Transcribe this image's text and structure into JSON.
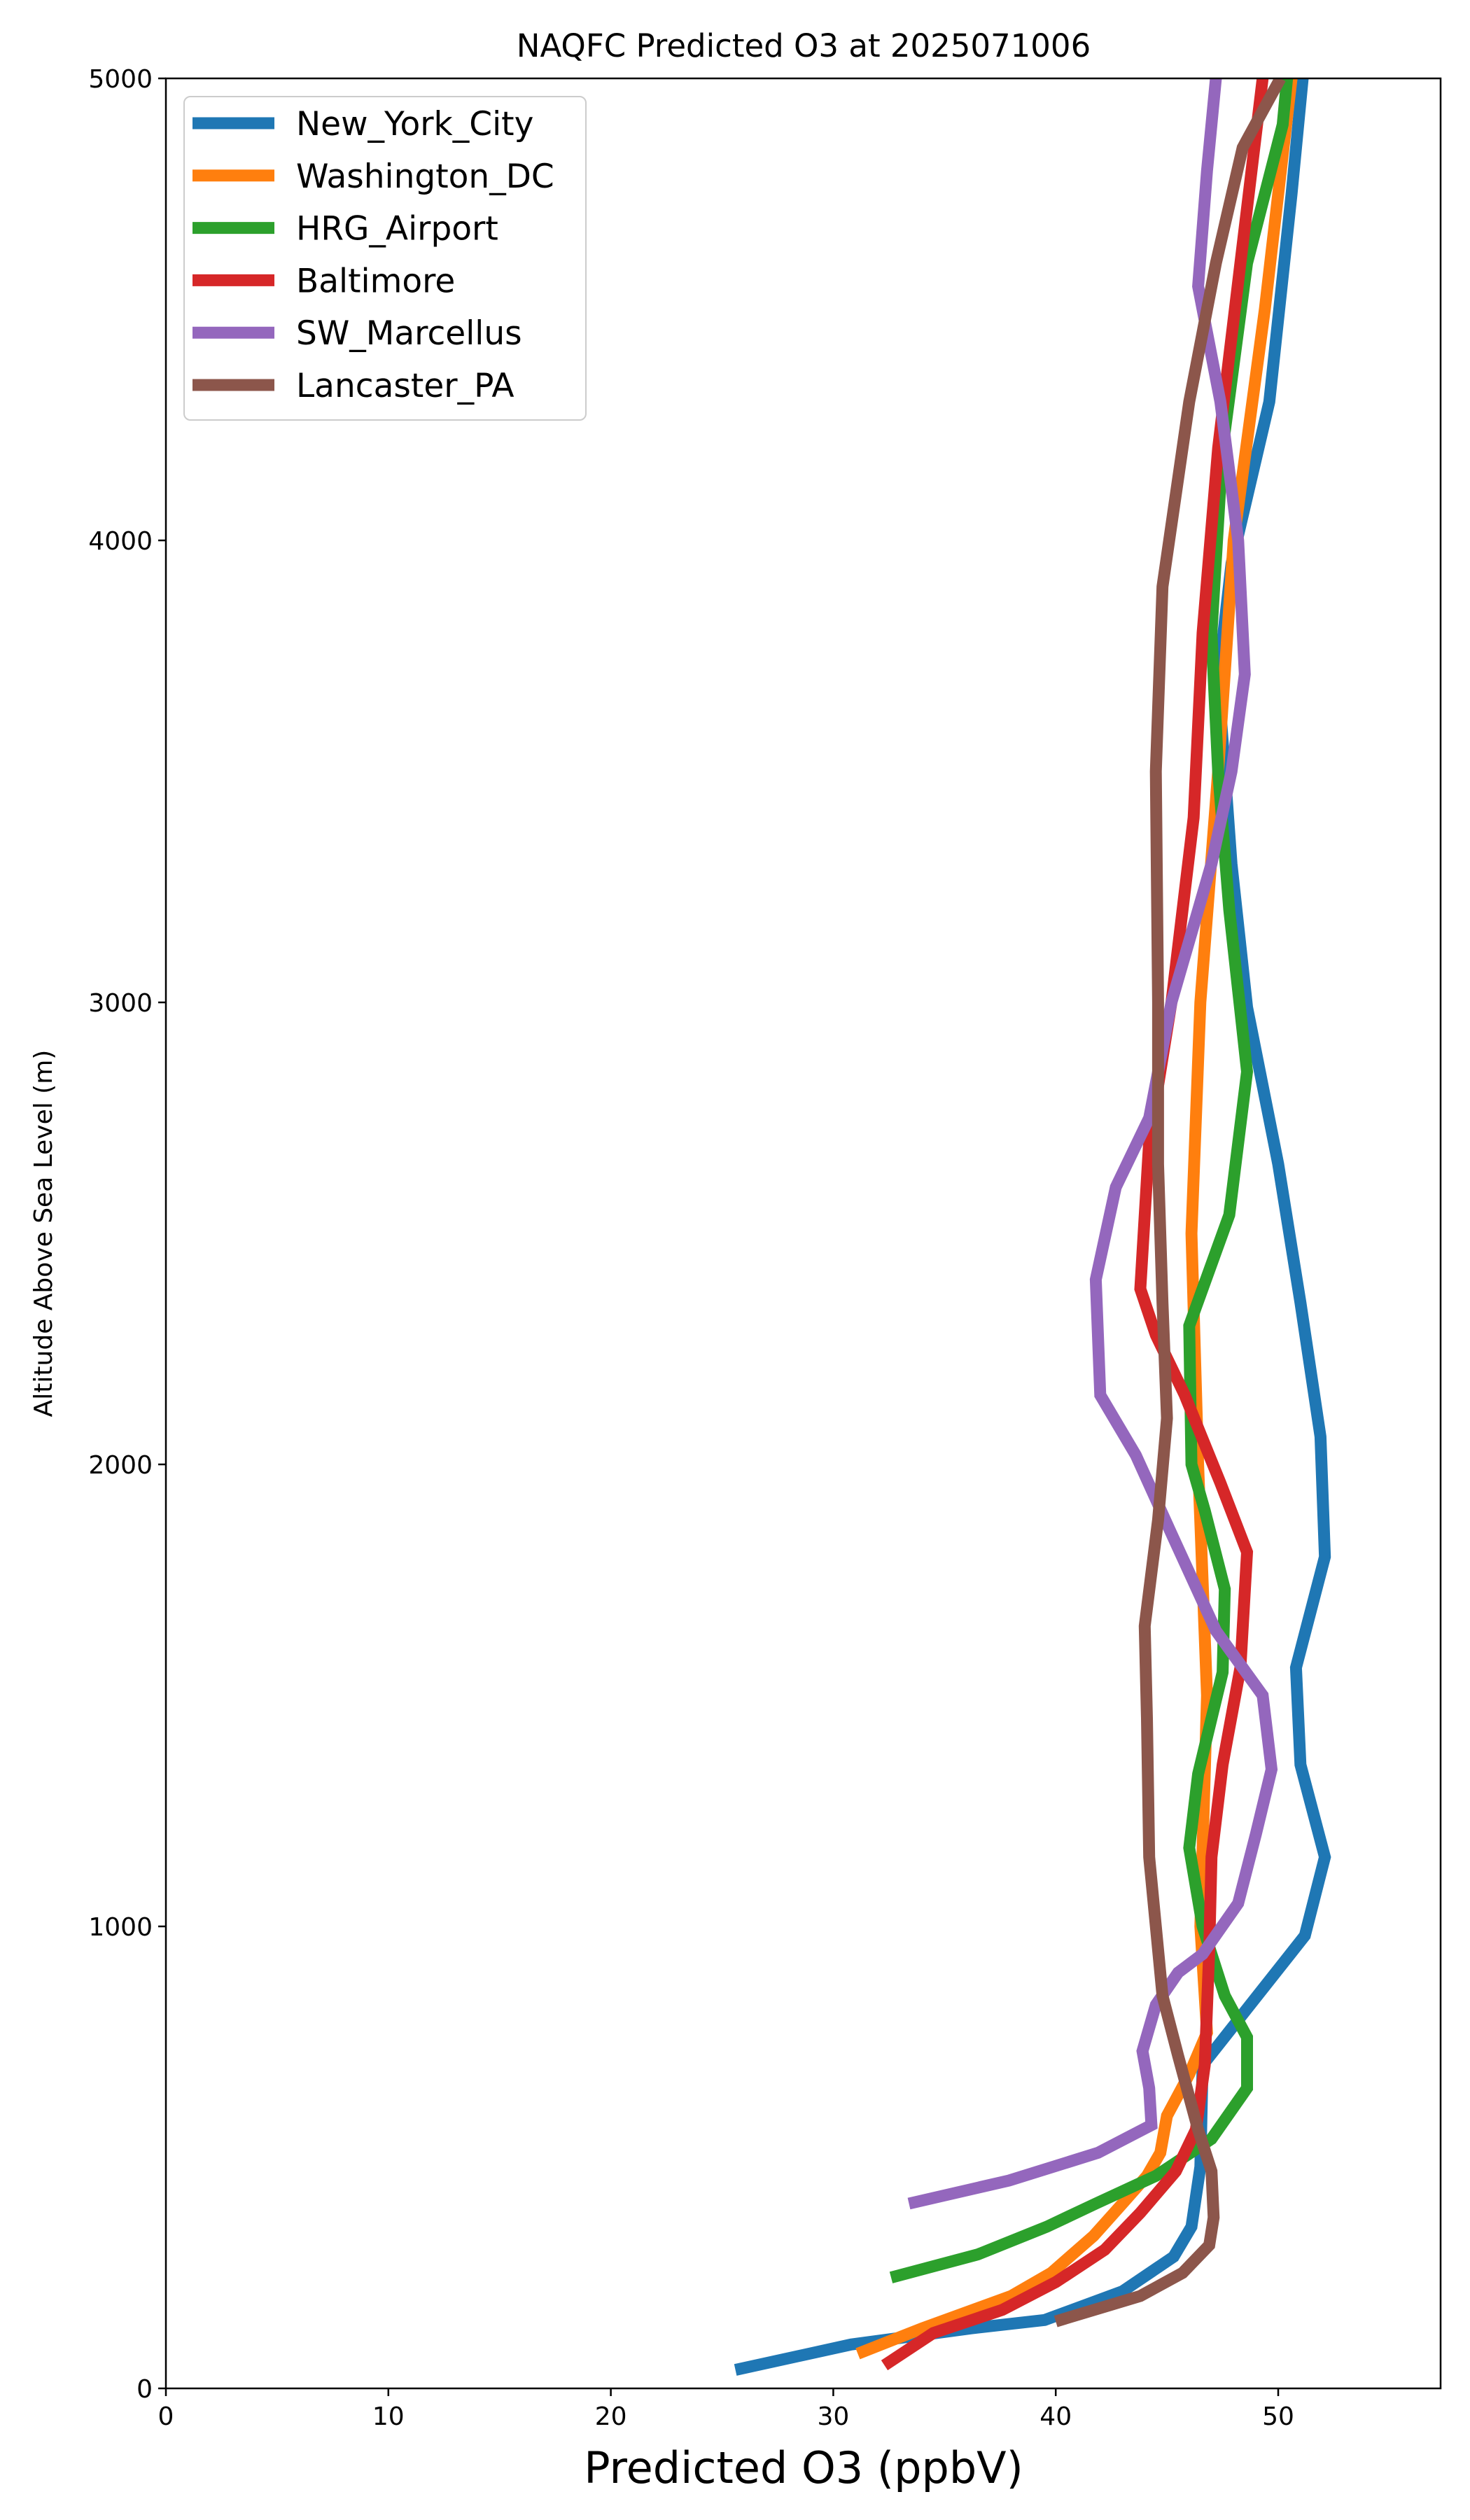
{
  "chart_data": {
    "type": "line",
    "title": "NAQFC Predicted O3 at 2025071006",
    "xlabel": "Predicted O3 (ppbV)",
    "ylabel": "Altitude Above Sea Level (m)",
    "xlim": [
      0,
      57.3
    ],
    "ylim": [
      0,
      5000
    ],
    "xticks": [
      0,
      10,
      20,
      30,
      40,
      50
    ],
    "yticks": [
      0,
      1000,
      2000,
      3000,
      4000,
      5000
    ],
    "grid": false,
    "legend_position": "top-left",
    "series": [
      {
        "name": "New_York_City",
        "color": "#1f77b4",
        "points": [
          [
            25.6,
            40
          ],
          [
            30.8,
            95
          ],
          [
            36.2,
            130
          ],
          [
            39.5,
            148
          ],
          [
            43.0,
            210
          ],
          [
            45.3,
            285
          ],
          [
            46.1,
            350
          ],
          [
            46.5,
            480
          ],
          [
            46.6,
            700
          ],
          [
            51.2,
            980
          ],
          [
            52.1,
            1150
          ],
          [
            51.0,
            1350
          ],
          [
            50.8,
            1560
          ],
          [
            52.1,
            1800
          ],
          [
            51.9,
            2060
          ],
          [
            51.0,
            2350
          ],
          [
            50.0,
            2650
          ],
          [
            48.6,
            2990
          ],
          [
            47.9,
            3300
          ],
          [
            47.3,
            3700
          ],
          [
            47.9,
            3950
          ],
          [
            49.6,
            4300
          ],
          [
            50.6,
            4750
          ],
          [
            51.1,
            5000
          ]
        ]
      },
      {
        "name": "Washington_DC",
        "color": "#ff7f0e",
        "points": [
          [
            31.1,
            75
          ],
          [
            34.0,
            130
          ],
          [
            38.0,
            200
          ],
          [
            39.8,
            250
          ],
          [
            41.7,
            330
          ],
          [
            43.0,
            400
          ],
          [
            44.1,
            460
          ],
          [
            44.7,
            510
          ],
          [
            45.0,
            590
          ],
          [
            46.0,
            680
          ],
          [
            46.8,
            770
          ],
          [
            46.5,
            1000
          ],
          [
            46.8,
            1500
          ],
          [
            46.4,
            2000
          ],
          [
            46.1,
            2500
          ],
          [
            46.5,
            3000
          ],
          [
            47.3,
            3500
          ],
          [
            48.0,
            4000
          ],
          [
            49.4,
            4500
          ],
          [
            50.6,
            5000
          ]
        ]
      },
      {
        "name": "HRG_Airport",
        "color": "#2ca02c",
        "points": [
          [
            32.6,
            240
          ],
          [
            36.5,
            290
          ],
          [
            39.6,
            350
          ],
          [
            41.8,
            400
          ],
          [
            44.5,
            460
          ],
          [
            47.0,
            540
          ],
          [
            48.6,
            650
          ],
          [
            48.6,
            760
          ],
          [
            47.6,
            850
          ],
          [
            46.6,
            1000
          ],
          [
            46.0,
            1170
          ],
          [
            46.4,
            1330
          ],
          [
            47.5,
            1550
          ],
          [
            47.6,
            1730
          ],
          [
            46.7,
            1900
          ],
          [
            46.1,
            2000
          ],
          [
            46.0,
            2300
          ],
          [
            47.8,
            2540
          ],
          [
            48.6,
            2850
          ],
          [
            47.8,
            3200
          ],
          [
            47.3,
            3500
          ],
          [
            47.0,
            3800
          ],
          [
            47.5,
            4200
          ],
          [
            48.6,
            4600
          ],
          [
            50.2,
            4900
          ],
          [
            50.4,
            5000
          ]
        ]
      },
      {
        "name": "Baltimore",
        "color": "#d62728",
        "points": [
          [
            32.3,
            50
          ],
          [
            34.5,
            120
          ],
          [
            37.6,
            170
          ],
          [
            40.0,
            230
          ],
          [
            42.2,
            300
          ],
          [
            43.8,
            380
          ],
          [
            45.4,
            470
          ],
          [
            46.3,
            560
          ],
          [
            46.7,
            700
          ],
          [
            46.9,
            950
          ],
          [
            47.0,
            1150
          ],
          [
            47.5,
            1350
          ],
          [
            48.3,
            1560
          ],
          [
            48.6,
            1810
          ],
          [
            47.4,
            1960
          ],
          [
            45.8,
            2150
          ],
          [
            44.5,
            2280
          ],
          [
            43.8,
            2380
          ],
          [
            44.2,
            2700
          ],
          [
            45.2,
            3000
          ],
          [
            46.2,
            3400
          ],
          [
            46.6,
            3800
          ],
          [
            47.3,
            4200
          ],
          [
            48.3,
            4600
          ],
          [
            49.3,
            5000
          ]
        ]
      },
      {
        "name": "SW_Marcellus",
        "color": "#9467bd",
        "points": [
          [
            33.4,
            400
          ],
          [
            37.9,
            450
          ],
          [
            41.9,
            510
          ],
          [
            44.3,
            570
          ],
          [
            44.2,
            650
          ],
          [
            43.9,
            730
          ],
          [
            44.5,
            830
          ],
          [
            45.5,
            900
          ],
          [
            46.6,
            940
          ],
          [
            48.2,
            1050
          ],
          [
            49.0,
            1200
          ],
          [
            49.7,
            1340
          ],
          [
            49.3,
            1500
          ],
          [
            47.2,
            1640
          ],
          [
            45.2,
            1850
          ],
          [
            43.6,
            2020
          ],
          [
            42.0,
            2150
          ],
          [
            41.8,
            2400
          ],
          [
            42.7,
            2600
          ],
          [
            44.2,
            2750
          ],
          [
            45.2,
            3000
          ],
          [
            47.0,
            3300
          ],
          [
            47.9,
            3500
          ],
          [
            48.5,
            3710
          ],
          [
            48.2,
            4000
          ],
          [
            47.4,
            4300
          ],
          [
            46.4,
            4550
          ],
          [
            46.8,
            4800
          ],
          [
            47.2,
            5000
          ]
        ]
      },
      {
        "name": "Lancaster_PA",
        "color": "#8c564b",
        "points": [
          [
            40.0,
            145
          ],
          [
            43.8,
            200
          ],
          [
            45.7,
            250
          ],
          [
            46.9,
            310
          ],
          [
            47.1,
            370
          ],
          [
            47.0,
            470
          ],
          [
            46.4,
            560
          ],
          [
            45.5,
            720
          ],
          [
            44.8,
            850
          ],
          [
            44.5,
            1000
          ],
          [
            44.2,
            1150
          ],
          [
            44.1,
            1450
          ],
          [
            44.0,
            1650
          ],
          [
            44.6,
            1880
          ],
          [
            45.0,
            2100
          ],
          [
            44.8,
            2350
          ],
          [
            44.6,
            2650
          ],
          [
            44.6,
            3000
          ],
          [
            44.5,
            3500
          ],
          [
            44.8,
            3900
          ],
          [
            46.0,
            4300
          ],
          [
            47.2,
            4600
          ],
          [
            48.4,
            4850
          ],
          [
            50.1,
            5000
          ]
        ]
      }
    ]
  }
}
